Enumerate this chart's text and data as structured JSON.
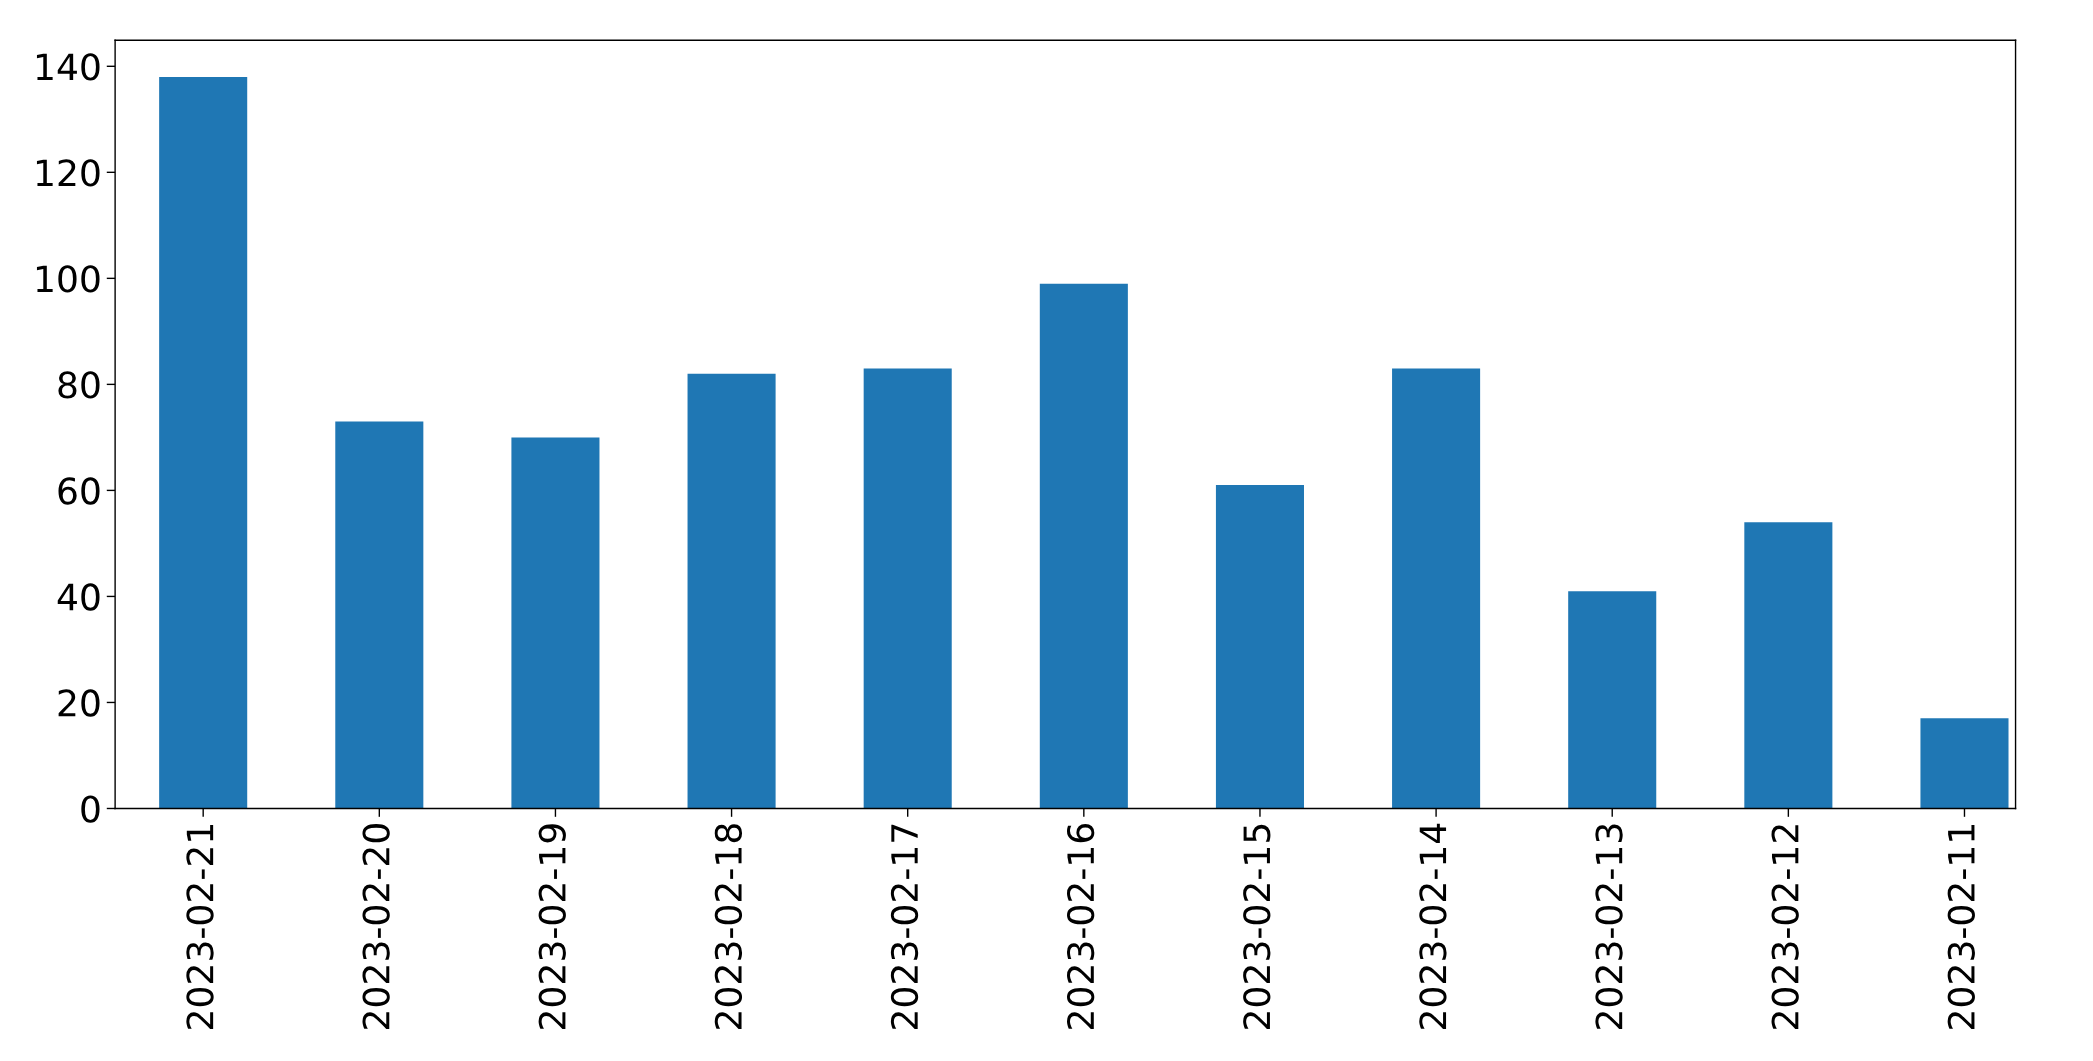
{
  "chart_data": {
    "type": "bar",
    "categories": [
      "2023-02-21",
      "2023-02-20",
      "2023-02-19",
      "2023-02-18",
      "2023-02-17",
      "2023-02-16",
      "2023-02-15",
      "2023-02-14",
      "2023-02-13",
      "2023-02-12",
      "2023-02-11"
    ],
    "values": [
      138,
      73,
      70,
      82,
      83,
      99,
      61,
      83,
      41,
      54,
      17
    ],
    "color": "#1f77b4",
    "ylim": [
      0,
      144.9
    ],
    "yticks": [
      0,
      20,
      40,
      60,
      80,
      100,
      120,
      140
    ],
    "grid": false
  }
}
